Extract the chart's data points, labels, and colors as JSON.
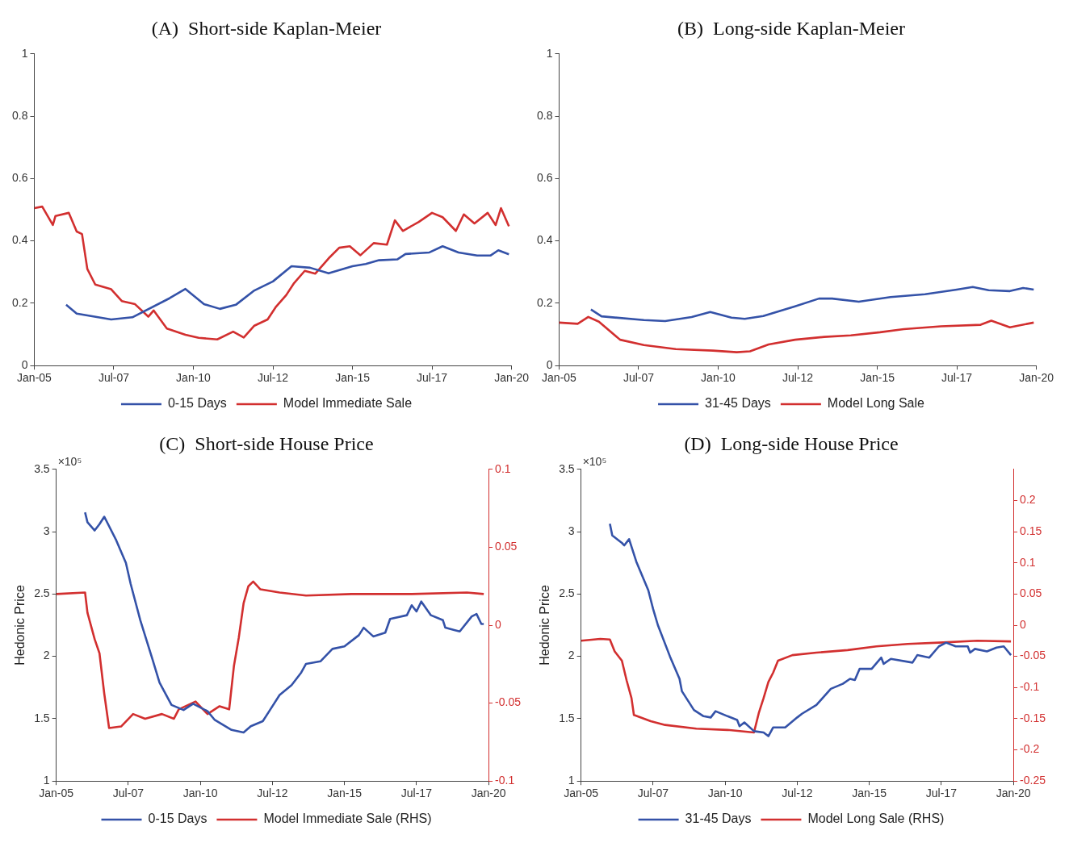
{
  "chart_data": [
    {
      "type": "line",
      "title": "(A)  Short-side Kaplan-Meier",
      "legend": "bottom",
      "xlim": [
        "2005-01",
        "2020-01"
      ],
      "xticks": [
        {
          "value": "2005-01",
          "label": "Jan-05"
        },
        {
          "value": "2007-07",
          "label": "Jul-07"
        },
        {
          "value": "2010-01",
          "label": "Jan-10"
        },
        {
          "value": "2012-07",
          "label": "Jul-12"
        },
        {
          "value": "2015-01",
          "label": "Jan-15"
        },
        {
          "value": "2017-07",
          "label": "Jul-17"
        },
        {
          "value": "2020-01",
          "label": "Jan-20"
        }
      ],
      "ylim": [
        0,
        1
      ],
      "yticks": [
        0,
        0.2,
        0.4,
        0.6,
        0.8,
        1
      ],
      "series": [
        {
          "name": "0-15 Days",
          "color": "#3452a8",
          "x": [
            "2006-01",
            "2006-05",
            "2007-06",
            "2008-02",
            "2009-04",
            "2009-10",
            "2010-05",
            "2010-11",
            "2011-05",
            "2011-12",
            "2012-07",
            "2013-02",
            "2013-09",
            "2014-04",
            "2015-01",
            "2015-06",
            "2015-11",
            "2016-06",
            "2016-09",
            "2017-06",
            "2017-11",
            "2018-05",
            "2018-12",
            "2019-05",
            "2019-08",
            "2019-12"
          ],
          "values": [
            0.195,
            0.167,
            0.148,
            0.155,
            0.216,
            0.246,
            0.197,
            0.182,
            0.195,
            0.241,
            0.27,
            0.319,
            0.314,
            0.296,
            0.319,
            0.326,
            0.338,
            0.341,
            0.358,
            0.363,
            0.383,
            0.363,
            0.353,
            0.353,
            0.37,
            0.357
          ]
        },
        {
          "name": "Model Immediate Sale",
          "color": "#d22f2f",
          "x": [
            "2005-01",
            "2005-04",
            "2005-08",
            "2005-09",
            "2006-02",
            "2006-05",
            "2006-07",
            "2006-09",
            "2006-12",
            "2007-06",
            "2007-10",
            "2008-03",
            "2008-08",
            "2008-10",
            "2009-03",
            "2009-10",
            "2010-03",
            "2010-10",
            "2011-04",
            "2011-08",
            "2011-12",
            "2012-05",
            "2012-08",
            "2012-12",
            "2013-03",
            "2013-07",
            "2013-11",
            "2014-04",
            "2014-08",
            "2014-12",
            "2015-04",
            "2015-09",
            "2016-02",
            "2016-05",
            "2016-08",
            "2017-02",
            "2017-07",
            "2017-11",
            "2018-04",
            "2018-07",
            "2018-11",
            "2019-04",
            "2019-07",
            "2019-09",
            "2019-12"
          ],
          "values": [
            0.505,
            0.51,
            0.451,
            0.48,
            0.49,
            0.43,
            0.422,
            0.31,
            0.26,
            0.245,
            0.207,
            0.197,
            0.157,
            0.177,
            0.119,
            0.099,
            0.089,
            0.084,
            0.109,
            0.09,
            0.128,
            0.148,
            0.187,
            0.226,
            0.265,
            0.304,
            0.295,
            0.344,
            0.378,
            0.383,
            0.354,
            0.393,
            0.388,
            0.466,
            0.432,
            0.461,
            0.49,
            0.476,
            0.432,
            0.485,
            0.456,
            0.49,
            0.451,
            0.505,
            0.447
          ]
        }
      ]
    },
    {
      "type": "line",
      "title": "(B)  Long-side Kaplan-Meier",
      "legend": "bottom",
      "xlim": [
        "2005-01",
        "2020-01"
      ],
      "xticks": [
        {
          "value": "2005-01",
          "label": "Jan-05"
        },
        {
          "value": "2007-07",
          "label": "Jul-07"
        },
        {
          "value": "2010-01",
          "label": "Jan-10"
        },
        {
          "value": "2012-07",
          "label": "Jul-12"
        },
        {
          "value": "2015-01",
          "label": "Jan-15"
        },
        {
          "value": "2017-07",
          "label": "Jul-17"
        },
        {
          "value": "2020-01",
          "label": "Jan-20"
        }
      ],
      "ylim": [
        0,
        1
      ],
      "yticks": [
        0,
        0.2,
        0.4,
        0.6,
        0.8,
        1
      ],
      "series": [
        {
          "name": "31-45 Days",
          "color": "#3452a8",
          "x": [
            "2006-01",
            "2006-05",
            "2007-09",
            "2008-05",
            "2009-03",
            "2009-10",
            "2010-06",
            "2010-11",
            "2011-06",
            "2012-06",
            "2013-03",
            "2013-08",
            "2014-06",
            "2015-06",
            "2016-07",
            "2017-07",
            "2018-01",
            "2018-07",
            "2019-03",
            "2019-08",
            "2019-12"
          ],
          "values": [
            0.18,
            0.158,
            0.146,
            0.143,
            0.156,
            0.172,
            0.154,
            0.15,
            0.159,
            0.19,
            0.215,
            0.215,
            0.205,
            0.22,
            0.229,
            0.244,
            0.252,
            0.242,
            0.239,
            0.249,
            0.244
          ]
        },
        {
          "name": "Model Long Sale",
          "color": "#d22f2f",
          "x": [
            "2005-01",
            "2005-08",
            "2005-12",
            "2006-04",
            "2006-12",
            "2007-09",
            "2008-09",
            "2009-11",
            "2010-08",
            "2011-01",
            "2011-08",
            "2012-06",
            "2013-05",
            "2014-03",
            "2015-02",
            "2015-11",
            "2017-01",
            "2018-04",
            "2018-08",
            "2019-03",
            "2019-12"
          ],
          "values": [
            0.138,
            0.134,
            0.156,
            0.141,
            0.083,
            0.066,
            0.053,
            0.048,
            0.043,
            0.046,
            0.068,
            0.083,
            0.092,
            0.097,
            0.107,
            0.117,
            0.126,
            0.131,
            0.144,
            0.123,
            0.138
          ]
        }
      ]
    },
    {
      "type": "line",
      "title": "(C)  Short-side House Price",
      "ylabel": "Hedonic Price",
      "annotations": [
        "×10⁵"
      ],
      "legend": "bottom",
      "xlim": [
        "2005-01",
        "2020-01"
      ],
      "xticks": [
        {
          "value": "2005-01",
          "label": "Jan-05"
        },
        {
          "value": "2007-07",
          "label": "Jul-07"
        },
        {
          "value": "2010-01",
          "label": "Jan-10"
        },
        {
          "value": "2012-07",
          "label": "Jul-12"
        },
        {
          "value": "2015-01",
          "label": "Jan-15"
        },
        {
          "value": "2017-07",
          "label": "Jul-17"
        },
        {
          "value": "2020-01",
          "label": "Jan-20"
        }
      ],
      "ylim": [
        1,
        3.5
      ],
      "yticks": [
        1,
        1.5,
        2,
        2.5,
        3,
        3.5
      ],
      "y2lim": [
        -0.1,
        0.1
      ],
      "y2ticks": [
        -0.1,
        -0.05,
        0,
        0.05,
        0.1
      ],
      "series": [
        {
          "name": "0-15 Days",
          "color": "#3452a8",
          "x": [
            "2006-01",
            "2006-02",
            "2006-05",
            "2006-07",
            "2006-09",
            "2007-02",
            "2007-06",
            "2007-08",
            "2007-12",
            "2008-05",
            "2008-08",
            "2009-01",
            "2009-06",
            "2009-10",
            "2010-04",
            "2010-07",
            "2011-02",
            "2011-07",
            "2011-10",
            "2012-03",
            "2012-06",
            "2012-10",
            "2013-03",
            "2013-07",
            "2013-09",
            "2014-03",
            "2014-08",
            "2015-01",
            "2015-07",
            "2015-09",
            "2016-01",
            "2016-06",
            "2016-08",
            "2017-03",
            "2017-05",
            "2017-07",
            "2017-09",
            "2018-01",
            "2018-06",
            "2018-07",
            "2018-11",
            "2019-01",
            "2019-06",
            "2019-08",
            "2019-10",
            "2019-11"
          ],
          "values": [
            3.155,
            3.076,
            3.01,
            3.06,
            3.12,
            2.93,
            2.75,
            2.58,
            2.29,
            1.98,
            1.79,
            1.61,
            1.57,
            1.62,
            1.56,
            1.49,
            1.41,
            1.39,
            1.44,
            1.48,
            1.57,
            1.69,
            1.77,
            1.87,
            1.94,
            1.96,
            2.06,
            2.08,
            2.17,
            2.23,
            2.16,
            2.19,
            2.3,
            2.33,
            2.41,
            2.36,
            2.44,
            2.33,
            2.29,
            2.23,
            2.21,
            2.2,
            2.32,
            2.34,
            2.26,
            2.26
          ]
        },
        {
          "name": "Model Immediate Sale (RHS)",
          "color": "#d22f2f",
          "axis": "y2",
          "x": [
            "2005-01",
            "2006-01",
            "2006-02",
            "2006-05",
            "2006-07",
            "2006-09",
            "2006-11",
            "2007-04",
            "2007-09",
            "2008-02",
            "2008-09",
            "2009-02",
            "2009-04",
            "2009-11",
            "2010-04",
            "2010-09",
            "2011-01",
            "2011-03",
            "2011-05",
            "2011-07",
            "2011-09",
            "2011-11",
            "2012-02",
            "2012-10",
            "2013-09",
            "2015-04",
            "2017-05",
            "2019-04",
            "2019-11"
          ],
          "values": [
            0.02,
            0.021,
            0.008,
            -0.009,
            -0.018,
            -0.044,
            -0.066,
            -0.065,
            -0.057,
            -0.06,
            -0.057,
            -0.06,
            -0.054,
            -0.049,
            -0.057,
            -0.052,
            -0.054,
            -0.026,
            -0.008,
            0.014,
            0.025,
            0.028,
            0.023,
            0.021,
            0.019,
            0.02,
            0.02,
            0.021,
            0.02
          ]
        }
      ]
    },
    {
      "type": "line",
      "title": "(D)  Long-side House Price",
      "ylabel": "Hedonic Price",
      "annotations": [
        "×10⁵"
      ],
      "legend": "bottom",
      "xlim": [
        "2005-01",
        "2020-01"
      ],
      "xticks": [
        {
          "value": "2005-01",
          "label": "Jan-05"
        },
        {
          "value": "2007-07",
          "label": "Jul-07"
        },
        {
          "value": "2010-01",
          "label": "Jan-10"
        },
        {
          "value": "2012-07",
          "label": "Jul-12"
        },
        {
          "value": "2015-01",
          "label": "Jan-15"
        },
        {
          "value": "2017-07",
          "label": "Jul-17"
        },
        {
          "value": "2020-01",
          "label": "Jan-20"
        }
      ],
      "ylim": [
        1,
        3.5
      ],
      "yticks": [
        1,
        1.5,
        2,
        2.5,
        3,
        3.5
      ],
      "y2lim": [
        -0.25,
        0.25
      ],
      "y2ticks": [
        -0.25,
        -0.2,
        -0.15,
        -0.1,
        -0.05,
        0,
        0.05,
        0.1,
        0.15,
        0.2
      ],
      "series": [
        {
          "name": "31-45 Days",
          "color": "#3452a8",
          "x": [
            "2006-01",
            "2006-02",
            "2006-06",
            "2006-07",
            "2006-09",
            "2006-12",
            "2007-05",
            "2007-07",
            "2007-09",
            "2008-02",
            "2008-06",
            "2008-07",
            "2008-12",
            "2009-04",
            "2009-07",
            "2009-09",
            "2010-02",
            "2010-06",
            "2010-07",
            "2010-09",
            "2011-01",
            "2011-05",
            "2011-07",
            "2011-09",
            "2012-02",
            "2012-07",
            "2012-09",
            "2013-03",
            "2013-09",
            "2014-02",
            "2014-05",
            "2014-07",
            "2014-09",
            "2015-02",
            "2015-06",
            "2015-07",
            "2015-10",
            "2016-07",
            "2016-09",
            "2017-02",
            "2017-06",
            "2017-09",
            "2018-01",
            "2018-06",
            "2018-07",
            "2018-09",
            "2019-02",
            "2019-06",
            "2019-09",
            "2019-12"
          ],
          "values": [
            3.063,
            2.97,
            2.91,
            2.89,
            2.94,
            2.76,
            2.53,
            2.38,
            2.25,
            2,
            1.82,
            1.72,
            1.57,
            1.52,
            1.51,
            1.56,
            1.52,
            1.49,
            1.44,
            1.47,
            1.4,
            1.39,
            1.36,
            1.43,
            1.43,
            1.51,
            1.54,
            1.61,
            1.74,
            1.78,
            1.82,
            1.81,
            1.9,
            1.9,
            1.99,
            1.94,
            1.98,
            1.95,
            2.01,
            1.99,
            2.08,
            2.11,
            2.08,
            2.08,
            2.03,
            2.06,
            2.04,
            2.07,
            2.08,
            2.01
          ]
        },
        {
          "name": "Model Long Sale (RHS)",
          "color": "#d22f2f",
          "axis": "y2",
          "x": [
            "2005-01",
            "2005-09",
            "2006-01",
            "2006-03",
            "2006-06",
            "2006-08",
            "2006-10",
            "2006-11",
            "2007-06",
            "2007-12",
            "2009-01",
            "2010-02",
            "2011-01",
            "2011-03",
            "2011-05",
            "2011-07",
            "2011-09",
            "2011-11",
            "2012-05",
            "2013-03",
            "2014-04",
            "2015-04",
            "2016-05",
            "2017-06",
            "2018-10",
            "2019-12"
          ],
          "values": [
            -0.025,
            -0.022,
            -0.023,
            -0.042,
            -0.057,
            -0.089,
            -0.117,
            -0.144,
            -0.154,
            -0.16,
            -0.166,
            -0.168,
            -0.172,
            -0.141,
            -0.117,
            -0.091,
            -0.076,
            -0.057,
            -0.048,
            -0.044,
            -0.04,
            -0.034,
            -0.03,
            -0.028,
            -0.025,
            -0.026
          ]
        }
      ]
    }
  ]
}
